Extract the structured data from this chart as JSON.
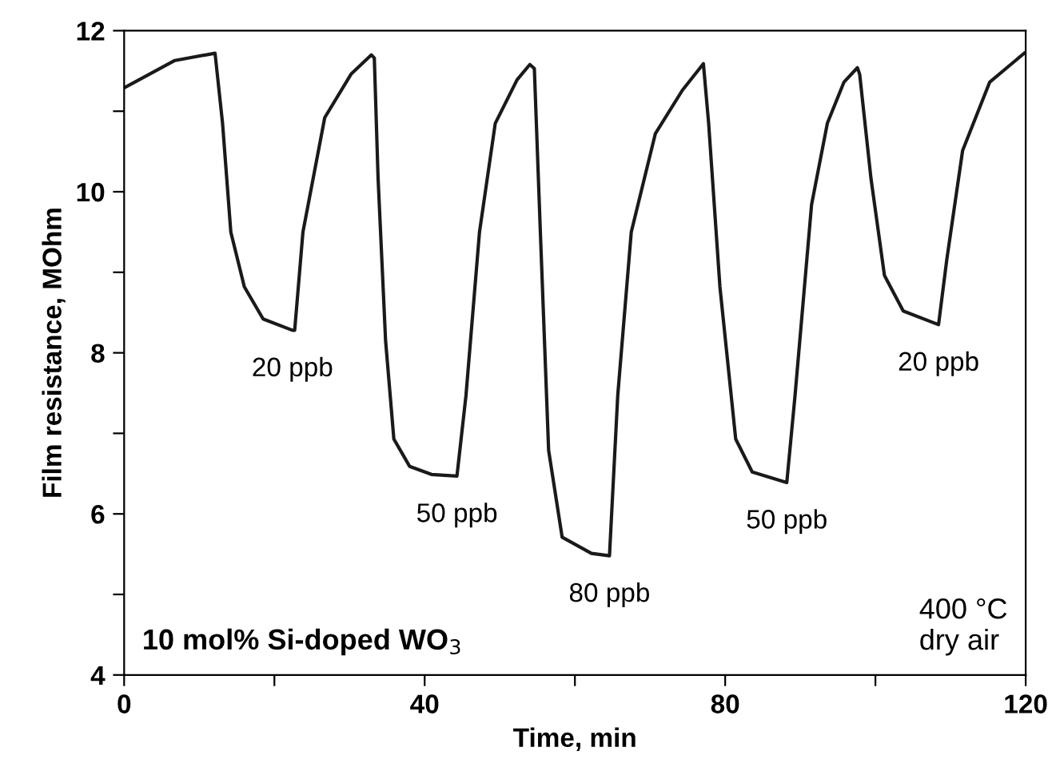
{
  "chart_data": {
    "type": "line",
    "xlabel": "Time, min",
    "ylabel": "Film resistance, MOhm",
    "xlim": [
      0,
      120
    ],
    "ylim": [
      4,
      12
    ],
    "xticks": [
      0,
      {
        "value": 20,
        "label": null
      },
      40,
      {
        "value": 60,
        "label": null
      },
      80,
      {
        "value": 100,
        "label": null
      },
      120
    ],
    "yticks": [
      4,
      {
        "value": 5,
        "label": null
      },
      6,
      {
        "value": 7,
        "label": null
      },
      8,
      {
        "value": 9,
        "label": null
      },
      10,
      {
        "value": 11,
        "label": null
      },
      12
    ],
    "grid": false,
    "marker": "none",
    "line_style": "solid",
    "series": [
      {
        "color": "#1a1a1a",
        "x": [
          0,
          6.75,
          12.1,
          13.1,
          14.2,
          16.0,
          18.5,
          22.4,
          22.7,
          23.8,
          26.7,
          30.2,
          32.9,
          33.3,
          33.8,
          34.8,
          35.9,
          38.0,
          40.9,
          44.3,
          45.5,
          47.3,
          49.4,
          52.3,
          54.0,
          54.6,
          55.4,
          56.5,
          58.3,
          62.2,
          64.6,
          65.7,
          67.5,
          70.7,
          74.3,
          77.1,
          77.8,
          79.3,
          81.4,
          83.6,
          88.2,
          89.3,
          91.5,
          93.6,
          95.8,
          97.6,
          97.9,
          99.4,
          101.2,
          103.7,
          108.4,
          109.5,
          111.6,
          115.2,
          119.8
        ],
        "values": [
          11.29,
          11.63,
          11.72,
          10.85,
          9.5,
          8.82,
          8.42,
          8.28,
          8.28,
          9.5,
          10.92,
          11.46,
          11.7,
          11.66,
          10.17,
          8.15,
          6.93,
          6.59,
          6.49,
          6.47,
          7.47,
          9.5,
          10.85,
          11.39,
          11.58,
          11.53,
          9.5,
          6.79,
          5.71,
          5.51,
          5.48,
          7.47,
          9.5,
          10.72,
          11.26,
          11.59,
          10.85,
          8.82,
          6.93,
          6.52,
          6.39,
          7.47,
          9.84,
          10.85,
          11.36,
          11.54,
          11.46,
          10.17,
          8.96,
          8.52,
          8.35,
          9.16,
          10.51,
          11.36,
          11.72
        ]
      }
    ],
    "annotations": [
      {
        "text": "20 ppb",
        "x": 22.4,
        "y": 8.28
      },
      {
        "text": "50 ppb",
        "x": 44.3,
        "y": 6.47
      },
      {
        "text": "80 ppb",
        "x": 64.6,
        "y": 5.48
      },
      {
        "text": "50 ppb",
        "x": 88.2,
        "y": 6.39
      },
      {
        "text": "20 ppb",
        "x": 108.4,
        "y": 8.35
      },
      "10 mol% Si-doped WO$_{3}$",
      "400 °C\ndry air"
    ]
  }
}
